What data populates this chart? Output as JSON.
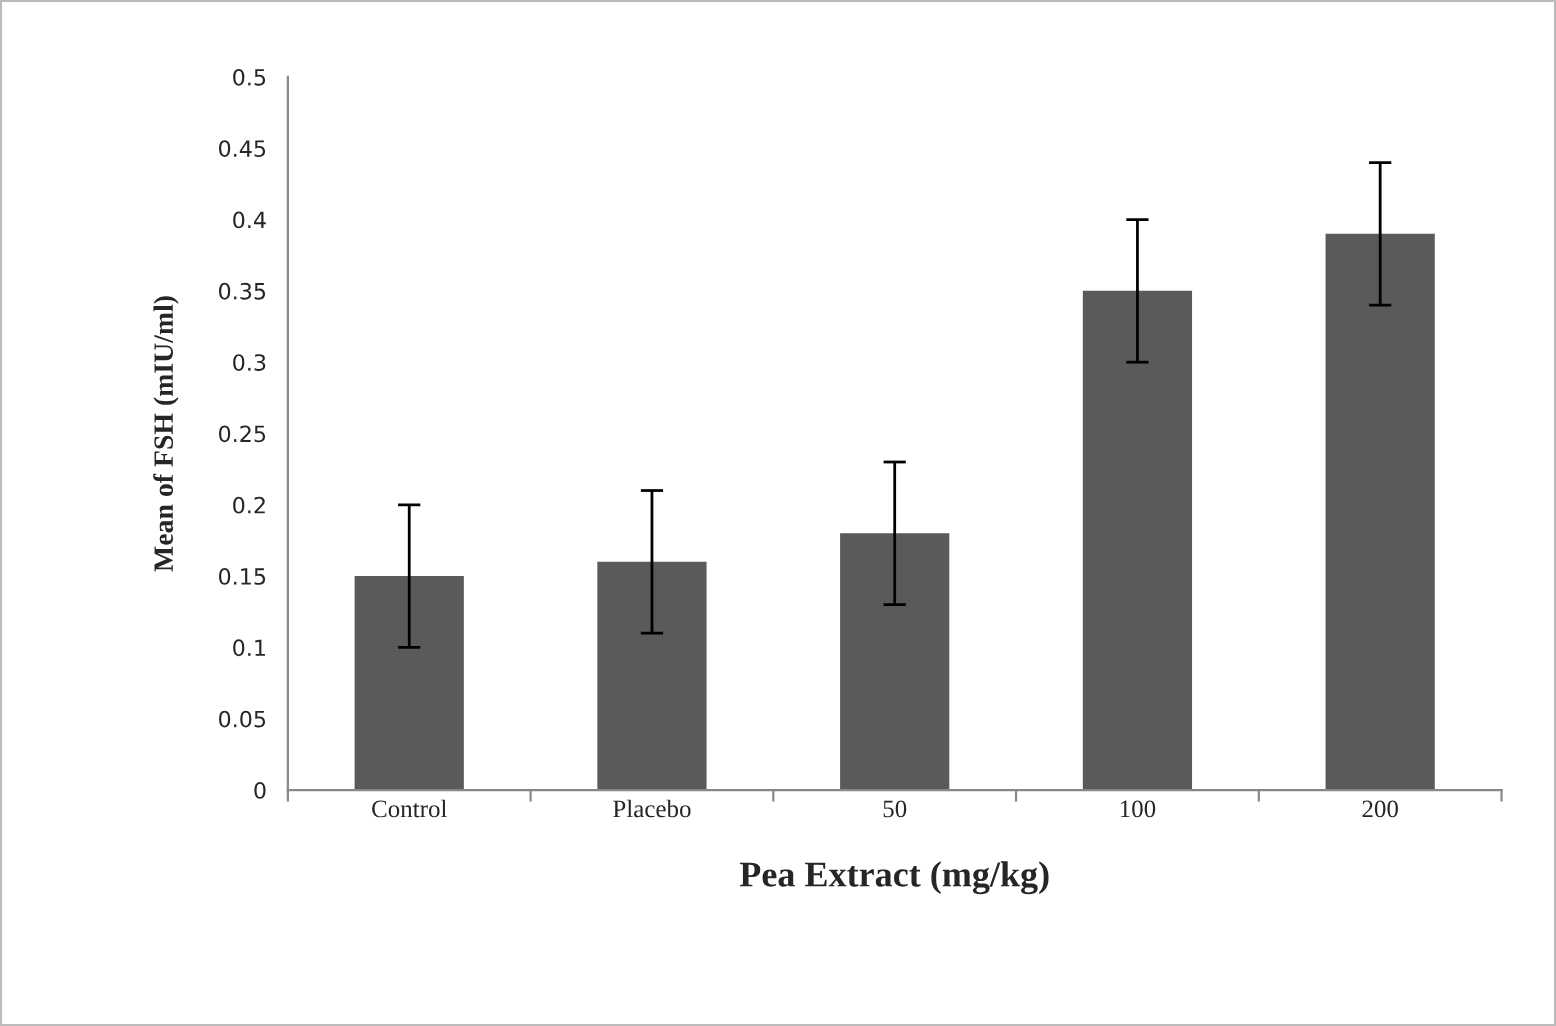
{
  "chart_data": {
    "type": "bar",
    "xlabel": "Pea Extract (mg/kg)",
    "ylabel": "Mean of FSH (mIU/ml)",
    "categories": [
      "Control",
      "Placebo",
      "50",
      "100",
      "200"
    ],
    "values": [
      0.15,
      0.16,
      0.18,
      0.35,
      0.39
    ],
    "errors": [
      0.05,
      0.05,
      0.05,
      0.05,
      0.05
    ],
    "color": "#5a5a5a",
    "ylim": [
      0,
      0.5
    ],
    "yticks": [
      0,
      0.05,
      0.1,
      0.15,
      0.2,
      0.25,
      0.3,
      0.35,
      0.4,
      0.45,
      0.5
    ],
    "grid": false,
    "legend": false
  }
}
